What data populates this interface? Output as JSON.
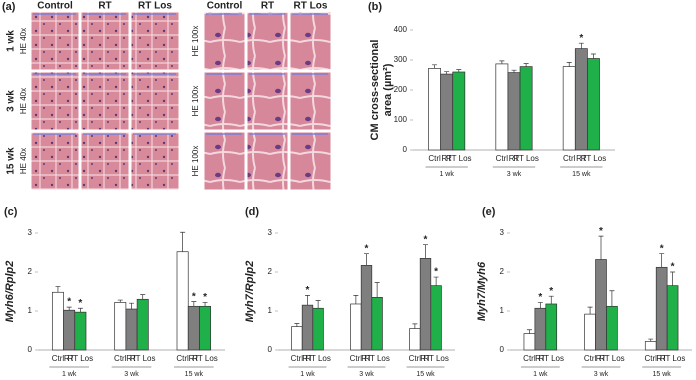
{
  "micrographs": {
    "panel_label": "(a)",
    "columns": [
      "Control",
      "RT",
      "RT Los"
    ],
    "rows": [
      "1 wk",
      "3 wk",
      "15 wk"
    ],
    "magnifications": [
      "HE 40x",
      "HE 100x"
    ]
  },
  "chart_data": [
    {
      "type": "grouped_bar",
      "panel_label": "(b)",
      "ylabel": [
        "CM cross-sectional",
        "area (µm²)"
      ],
      "categories": [
        "1 wk",
        "3 wk",
        "15 wk"
      ],
      "ylim": [
        0,
        400
      ],
      "yticks": [
        0,
        100,
        200,
        300,
        400
      ],
      "series": [
        {
          "name": "Ctrl",
          "color": "#ffffff",
          "values": [
            272,
            287,
            278
          ],
          "errors": [
            12,
            10,
            14
          ],
          "significance": [
            null,
            null,
            null
          ]
        },
        {
          "name": "RT",
          "color": "#7f7f7f",
          "values": [
            253,
            258,
            338
          ],
          "errors": [
            8,
            8,
            18
          ],
          "significance": [
            null,
            null,
            "*"
          ]
        },
        {
          "name": "RT Los",
          "color": "#1fb04a",
          "values": [
            260,
            278,
            305
          ],
          "errors": [
            8,
            10,
            15
          ],
          "significance": [
            null,
            null,
            null
          ]
        }
      ]
    },
    {
      "type": "grouped_bar",
      "panel_label": "(c)",
      "ylabel": "Myh6/Rplp2",
      "categories": [
        "1 wk",
        "3 wk",
        "15 wk"
      ],
      "ylim": [
        0,
        3
      ],
      "yticks": [
        0,
        1,
        2,
        3
      ],
      "series": [
        {
          "name": "Ctrl",
          "color": "#ffffff",
          "values": [
            1.48,
            1.22,
            2.52
          ],
          "errors": [
            0.15,
            0.06,
            0.5
          ],
          "significance": [
            null,
            null,
            null
          ]
        },
        {
          "name": "RT",
          "color": "#7f7f7f",
          "values": [
            1.02,
            1.05,
            1.12
          ],
          "errors": [
            0.08,
            0.15,
            0.12
          ],
          "significance": [
            "*",
            null,
            "*"
          ]
        },
        {
          "name": "RT Los",
          "color": "#1fb04a",
          "values": [
            0.97,
            1.3,
            1.12
          ],
          "errors": [
            0.1,
            0.12,
            0.1
          ],
          "significance": [
            "*",
            null,
            "*"
          ]
        }
      ]
    },
    {
      "type": "grouped_bar",
      "panel_label": "(d)",
      "ylabel": "Myh7/Rplp2",
      "categories": [
        "1 wk",
        "3 wk",
        "15 wk"
      ],
      "ylim": [
        0,
        3
      ],
      "yticks": [
        0,
        1,
        2,
        3
      ],
      "series": [
        {
          "name": "Ctrl",
          "color": "#ffffff",
          "values": [
            0.6,
            1.18,
            0.55
          ],
          "errors": [
            0.08,
            0.22,
            0.12
          ],
          "significance": [
            null,
            null,
            null
          ]
        },
        {
          "name": "RT",
          "color": "#7f7f7f",
          "values": [
            1.15,
            2.17,
            2.35
          ],
          "errors": [
            0.25,
            0.3,
            0.35
          ],
          "significance": [
            "*",
            "*",
            "*"
          ]
        },
        {
          "name": "RT Los",
          "color": "#1fb04a",
          "values": [
            1.07,
            1.35,
            1.65
          ],
          "errors": [
            0.2,
            0.38,
            0.22
          ],
          "significance": [
            null,
            null,
            "*"
          ]
        }
      ]
    },
    {
      "type": "grouped_bar",
      "panel_label": "(e)",
      "ylabel": "Myh7/Myh6",
      "categories": [
        "1 wk",
        "3 wk",
        "15 wk"
      ],
      "ylim": [
        0,
        3
      ],
      "yticks": [
        0,
        1,
        2,
        3
      ],
      "series": [
        {
          "name": "Ctrl",
          "color": "#ffffff",
          "values": [
            0.42,
            0.92,
            0.22
          ],
          "errors": [
            0.1,
            0.18,
            0.06
          ],
          "significance": [
            null,
            null,
            null
          ]
        },
        {
          "name": "RT",
          "color": "#7f7f7f",
          "values": [
            1.07,
            2.32,
            2.12
          ],
          "errors": [
            0.15,
            0.6,
            0.35
          ],
          "significance": [
            "*",
            "*",
            "*"
          ]
        },
        {
          "name": "RT Los",
          "color": "#1fb04a",
          "values": [
            1.18,
            1.12,
            1.65
          ],
          "errors": [
            0.2,
            0.4,
            0.35
          ],
          "significance": [
            "*",
            null,
            "*"
          ]
        }
      ]
    }
  ]
}
